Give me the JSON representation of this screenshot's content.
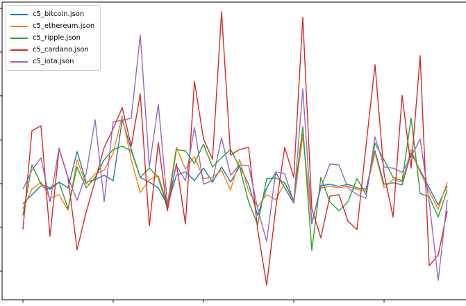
{
  "chart_data": {
    "type": "line",
    "title": "",
    "xlabel": "",
    "ylabel": "",
    "grid": false,
    "legend_position": "upper left",
    "ylim": [
      0,
      100
    ],
    "x_tick_indices": [
      0,
      10,
      20,
      30,
      40
    ],
    "y_tick_values": [
      9.6,
      24.3,
      39.0,
      53.7,
      68.5,
      83.2,
      97.9
    ],
    "series": [
      {
        "name": "c5_bitcoin.json",
        "color": "#1f77b4",
        "values": [
          32.2,
          35.3,
          38.3,
          37.1,
          39.5,
          37.6,
          49.8,
          39.5,
          40.4,
          41.8,
          40.0,
          60.5,
          50.5,
          41.1,
          39.5,
          37.6,
          31.8,
          41.8,
          43.0,
          40.0,
          44.2,
          39.5,
          44.6,
          39.5,
          44.9,
          38.8,
          28.3,
          37.6,
          42.8,
          37.6,
          32.5,
          55.6,
          25.5,
          38.3,
          38.8,
          38.1,
          38.8,
          37.6,
          37.1,
          50.0,
          38.8,
          39.3,
          38.6,
          49.3,
          43.5,
          37.6,
          31.8,
          38.3
        ]
      },
      {
        "name": "c5_ethereum.json",
        "color": "#ff7f0e",
        "values": [
          30.6,
          37.1,
          39.5,
          34.1,
          35.3,
          30.1,
          47.0,
          38.8,
          42.3,
          43.5,
          49.3,
          61.7,
          47.0,
          36.0,
          40.4,
          41.6,
          32.2,
          51.2,
          43.9,
          48.1,
          40.7,
          41.1,
          43.5,
          36.9,
          47.2,
          36.4,
          31.3,
          35.3,
          33.6,
          39.3,
          32.9,
          55.1,
          25.9,
          37.6,
          38.1,
          37.6,
          38.1,
          37.1,
          36.4,
          49.3,
          37.6,
          40.4,
          39.5,
          50.5,
          42.8,
          36.4,
          30.4,
          39.5
        ]
      },
      {
        "name": "c5_ripple.json",
        "color": "#2ca02c",
        "values": [
          28.3,
          45.3,
          38.8,
          37.6,
          39.5,
          30.6,
          44.6,
          37.6,
          41.1,
          47.0,
          50.5,
          51.6,
          50.0,
          41.1,
          44.2,
          41.1,
          30.6,
          50.5,
          50.0,
          45.8,
          52.3,
          44.6,
          47.7,
          50.5,
          44.6,
          32.9,
          25.2,
          40.7,
          40.9,
          39.3,
          33.4,
          58.2,
          16.6,
          41.1,
          32.9,
          29.9,
          32.9,
          40.7,
          35.3,
          52.6,
          47.0,
          41.1,
          40.0,
          61.0,
          35.7,
          34.6,
          27.8,
          36.9
        ]
      },
      {
        "name": "c5_cardano.json",
        "color": "#d62728",
        "values": [
          23.6,
          56.8,
          58.4,
          21.3,
          50.7,
          40.9,
          16.8,
          29.4,
          40.0,
          51.2,
          57.5,
          64.5,
          51.6,
          69.2,
          24.8,
          52.8,
          29.9,
          45.8,
          25.5,
          73.4,
          54.0,
          47.2,
          96.7,
          48.6,
          50.5,
          51.2,
          23.6,
          4.9,
          30.6,
          51.2,
          41.1,
          94.9,
          30.6,
          20.8,
          34.8,
          35.3,
          26.4,
          23.6,
          51.6,
          79.0,
          42.3,
          27.8,
          68.7,
          44.2,
          82.0,
          11.4,
          15.0,
          29.9
        ]
      },
      {
        "name": "c5_iota.json",
        "color": "#9467bd",
        "values": [
          37.1,
          43.5,
          47.7,
          32.9,
          50.9,
          41.1,
          33.4,
          42.3,
          60.5,
          32.9,
          59.8,
          60.3,
          61.0,
          89.0,
          44.6,
          65.7,
          32.2,
          45.1,
          40.0,
          57.9,
          38.8,
          40.0,
          54.4,
          41.8,
          45.3,
          45.1,
          30.6,
          19.6,
          43.0,
          42.3,
          32.9,
          70.8,
          25.9,
          37.6,
          45.6,
          45.3,
          37.6,
          35.3,
          34.1,
          54.7,
          44.6,
          44.2,
          42.8,
          48.1,
          54.0,
          32.9,
          6.5,
          33.6
        ]
      }
    ]
  }
}
